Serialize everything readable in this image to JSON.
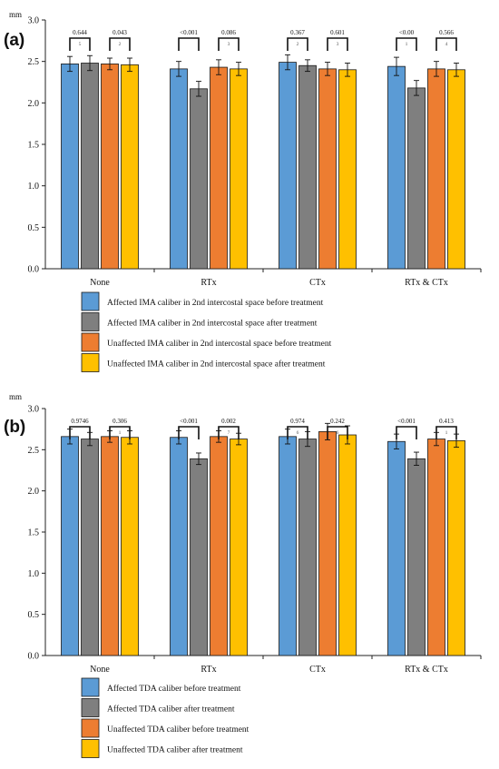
{
  "charts": [
    {
      "label": "(a)",
      "unit": "mm",
      "type": "bar",
      "categories": [
        "None",
        "RTx",
        "CTx",
        "RTx & CTx"
      ],
      "ylim": [
        0,
        3.0
      ],
      "yticks": [
        "0.0",
        "0.5",
        "1.0",
        "1.5",
        "2.0",
        "2.5",
        "3.0"
      ],
      "series": [
        {
          "name": "Affected IMA caliber in 2nd intercostal space before treatment",
          "color": "#5b9bd5",
          "values": [
            2.47,
            2.41,
            2.49,
            2.44
          ],
          "errors": [
            0.09,
            0.09,
            0.09,
            0.11
          ]
        },
        {
          "name": "Affected IMA caliber in 2nd intercostal space after treatment",
          "color": "#7f7f7f",
          "values": [
            2.48,
            2.17,
            2.45,
            2.18
          ],
          "errors": [
            0.09,
            0.09,
            0.07,
            0.09
          ]
        },
        {
          "name": "Unaffected IMA caliber in 2nd intercostal space before treatment",
          "color": "#ed7d31",
          "values": [
            2.47,
            2.43,
            2.41,
            2.41
          ],
          "errors": [
            0.07,
            0.09,
            0.08,
            0.09
          ]
        },
        {
          "name": "Unaffected IMA caliber in 2nd intercostal space after treatment",
          "color": "#ffc000",
          "values": [
            2.46,
            2.41,
            2.4,
            2.4
          ],
          "errors": [
            0.08,
            0.08,
            0.08,
            0.08
          ]
        }
      ],
      "pvalues": [
        [
          {
            "text": "0.644",
            "mark": "5"
          },
          {
            "text": "0.043",
            "mark": "2"
          }
        ],
        [
          {
            "text": "<0.001",
            "mark": ""
          },
          {
            "text": "0.086",
            "mark": "3"
          }
        ],
        [
          {
            "text": "0.367",
            "mark": "2"
          },
          {
            "text": "0.601",
            "mark": "3"
          }
        ],
        [
          {
            "text": "<0.00",
            "mark": "1"
          },
          {
            "text": "0.566",
            "mark": "4"
          }
        ]
      ]
    },
    {
      "label": "(b)",
      "unit": "mm",
      "type": "bar",
      "categories": [
        "None",
        "RTx",
        "CTx",
        "RTx & CTx"
      ],
      "ylim": [
        0,
        3.0
      ],
      "yticks": [
        "0.0",
        "0.5",
        "1.0",
        "1.5",
        "2.0",
        "2.5",
        "3.0"
      ],
      "series": [
        {
          "name": "Affected TDA caliber before treatment",
          "color": "#5b9bd5",
          "values": [
            2.66,
            2.65,
            2.66,
            2.6
          ],
          "errors": [
            0.09,
            0.08,
            0.09,
            0.09
          ]
        },
        {
          "name": "Affected TDA caliber after treatment",
          "color": "#7f7f7f",
          "values": [
            2.63,
            2.39,
            2.63,
            2.39
          ],
          "errors": [
            0.08,
            0.07,
            0.09,
            0.08
          ]
        },
        {
          "name": "Unaffected TDA caliber before treatment",
          "color": "#ed7d31",
          "values": [
            2.66,
            2.66,
            2.72,
            2.63
          ],
          "errors": [
            0.07,
            0.07,
            0.1,
            0.08
          ]
        },
        {
          "name": "Unaffected TDA caliber after treatment",
          "color": "#ffc000",
          "values": [
            2.65,
            2.63,
            2.68,
            2.61
          ],
          "errors": [
            0.08,
            0.07,
            0.11,
            0.08
          ]
        }
      ],
      "pvalues": [
        [
          {
            "text": "0.9746",
            "mark": ""
          },
          {
            "text": "0.306",
            "mark": "1"
          }
        ],
        [
          {
            "text": "<0.001",
            "mark": ""
          },
          {
            "text": "0.002",
            "mark": "7"
          }
        ],
        [
          {
            "text": "0.974",
            "mark": "6"
          },
          {
            "text": "0.242",
            "mark": "6"
          }
        ],
        [
          {
            "text": "<0.001",
            "mark": ""
          },
          {
            "text": "0.413",
            "mark": "1"
          }
        ]
      ]
    }
  ]
}
